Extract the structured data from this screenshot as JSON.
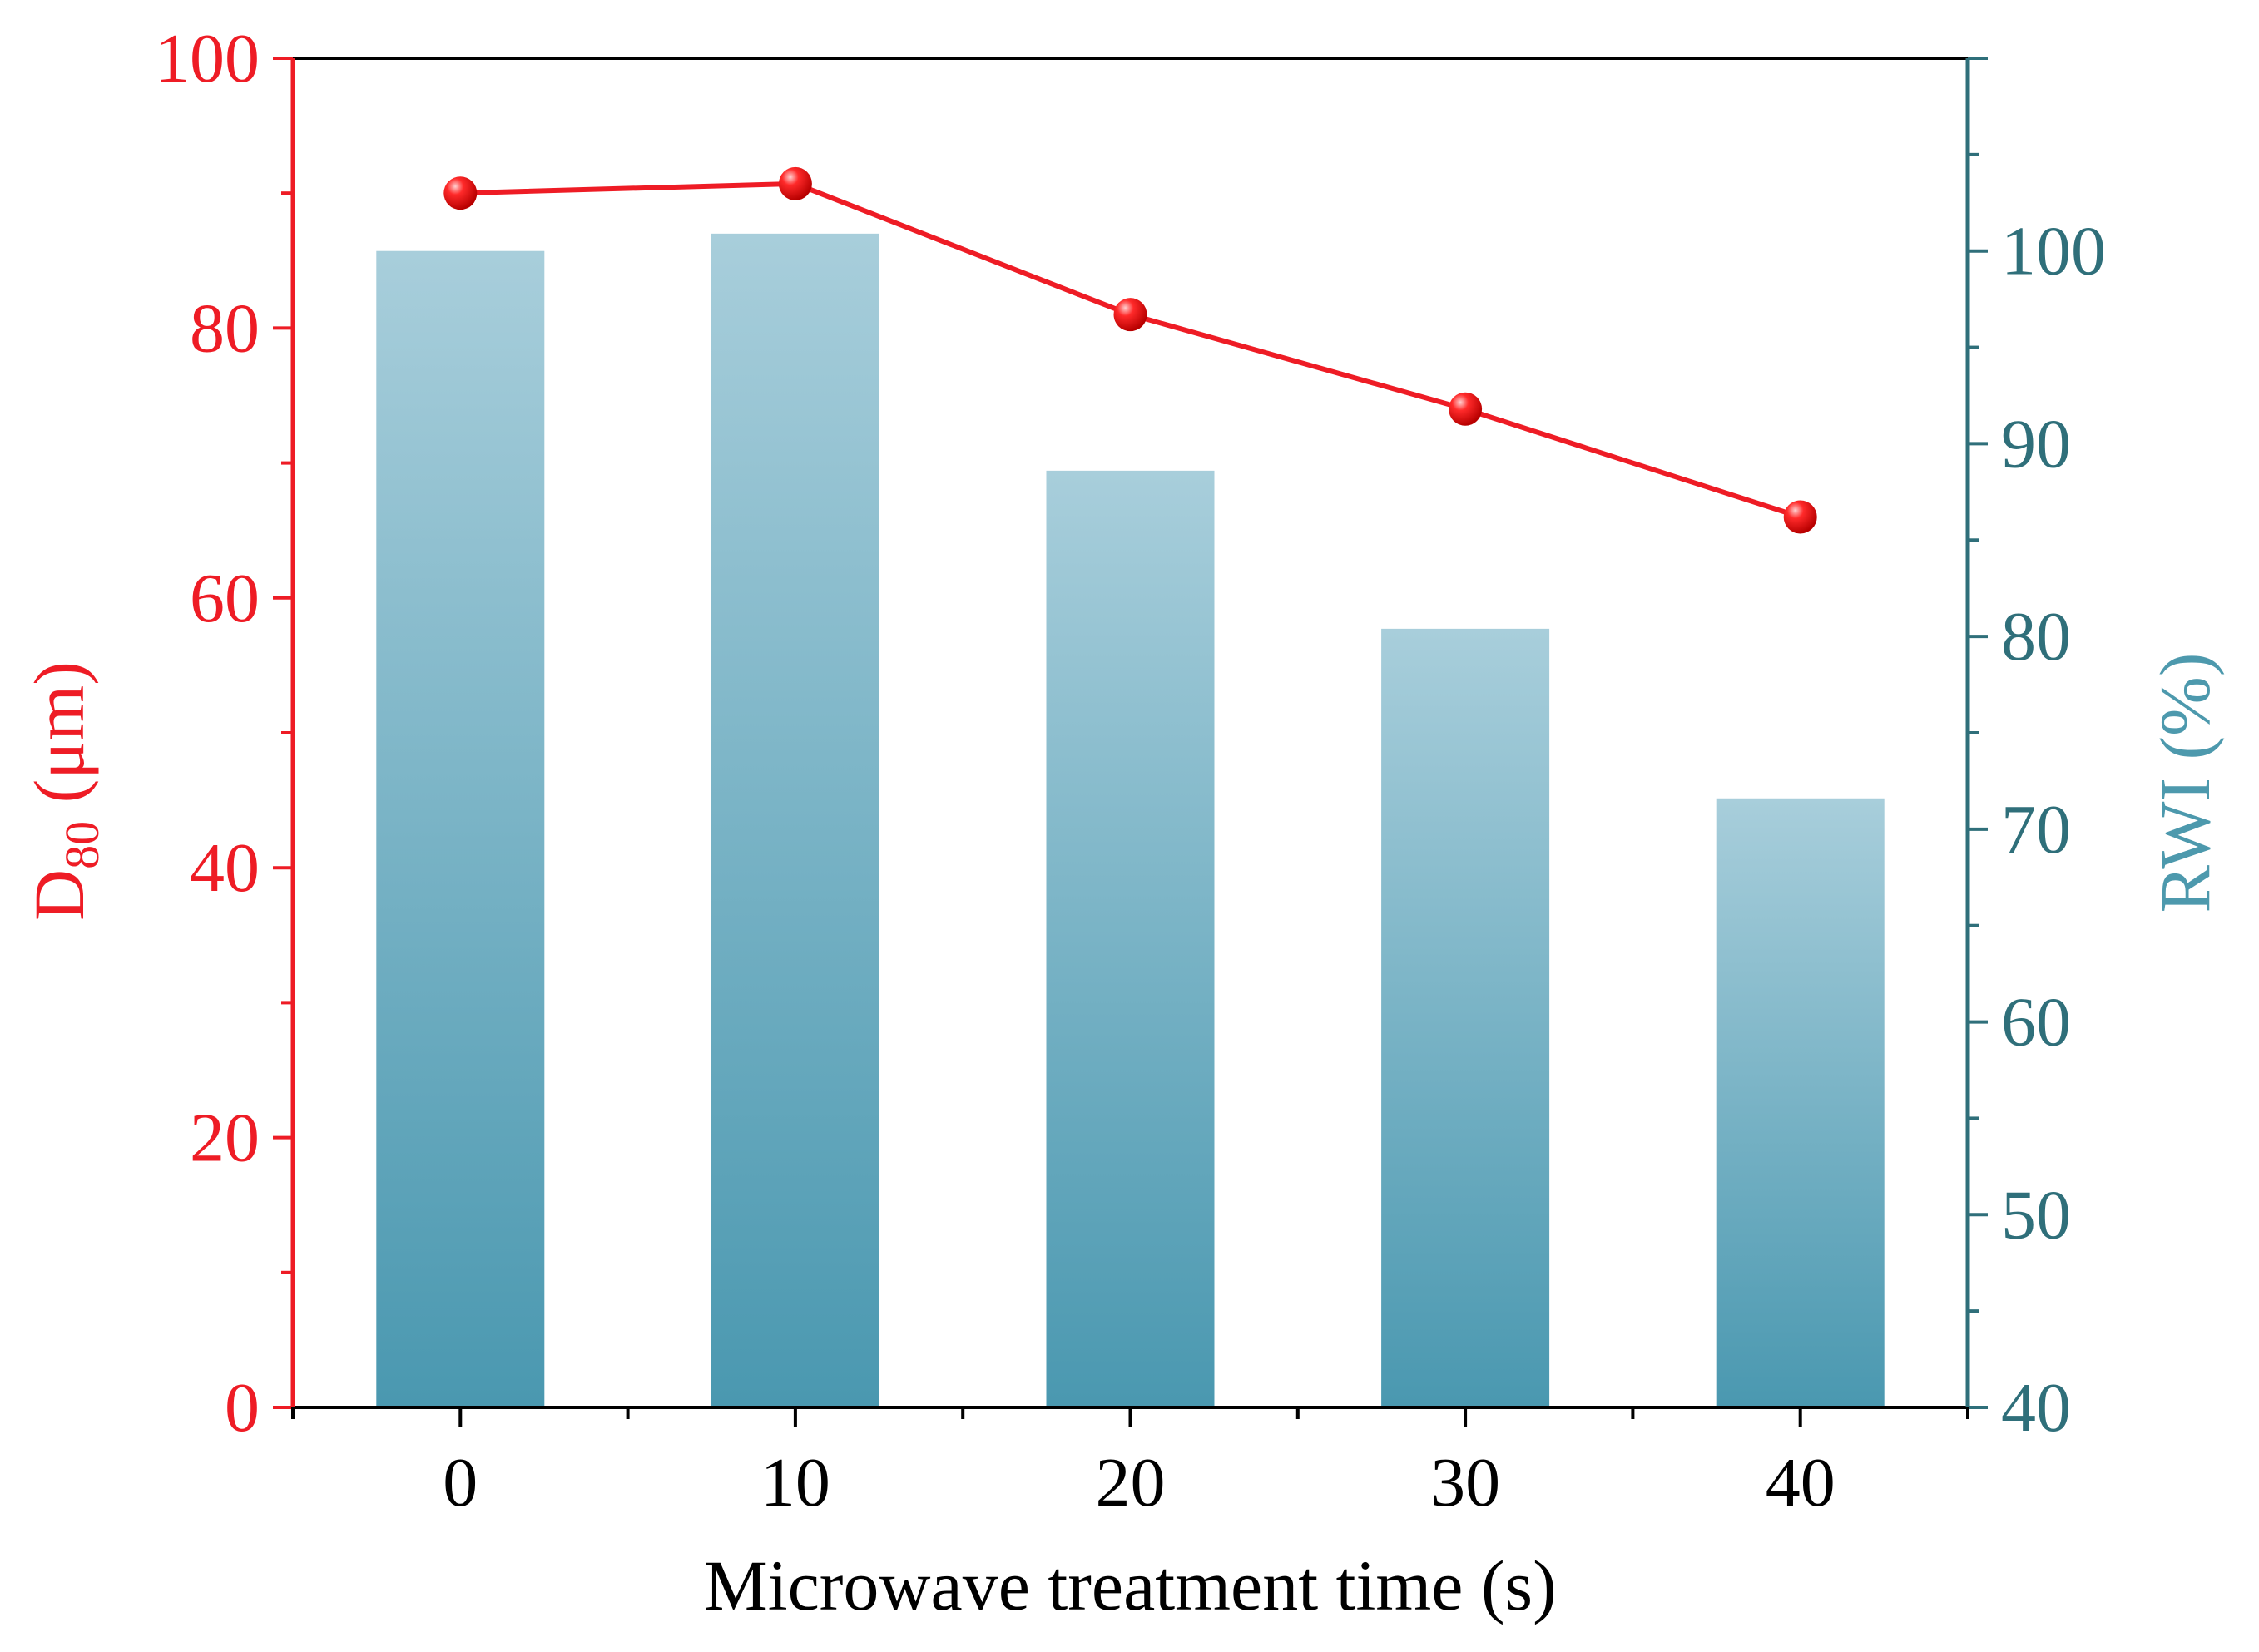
{
  "chart_data": {
    "type": "bar+line",
    "title": "",
    "categories": [
      "0",
      "10",
      "20",
      "30",
      "40"
    ],
    "x": [
      0,
      10,
      20,
      30,
      40
    ],
    "xlabel": "Microwave treatment time (s)",
    "xlim": [
      -5,
      45
    ],
    "xticks": [
      "0",
      "10",
      "20",
      "30",
      "40"
    ],
    "left_axis": {
      "label_main": "D",
      "label_sub": "80",
      "label_unit": " (μm)",
      "ylim": [
        0,
        100
      ],
      "ticks": [
        "0",
        "20",
        "40",
        "60",
        "80",
        "100"
      ],
      "color": "#ee1c25"
    },
    "right_axis": {
      "label": "RWI (%)",
      "ylim": [
        40,
        110
      ],
      "ticks": [
        "40",
        "50",
        "60",
        "70",
        "80",
        "90",
        "100"
      ],
      "color": "#2f6f7a"
    },
    "series": [
      {
        "name": "D80",
        "kind": "line",
        "axis": "left",
        "values": [
          90.0,
          90.7,
          81.0,
          74.0,
          66.0
        ],
        "color": "#ee1c25"
      },
      {
        "name": "RWI",
        "kind": "bar",
        "axis": "right",
        "values": [
          100.0,
          100.9,
          88.6,
          80.4,
          71.6
        ],
        "color_top": "#a8cedb",
        "color_bottom": "#4a98b0"
      }
    ],
    "grid": false,
    "legend": "none"
  }
}
